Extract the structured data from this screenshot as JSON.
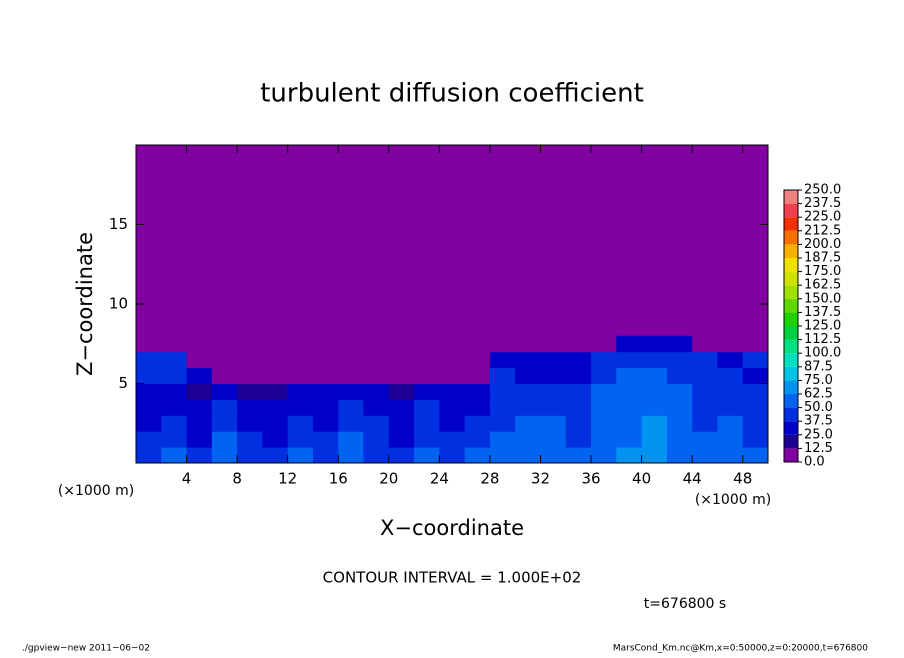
{
  "chart_data": {
    "type": "contour",
    "title": "turbulent diffusion coefficient",
    "xlabel": "X−coordinate",
    "ylabel": "Z−coordinate",
    "xunit": "(×1000 m)",
    "yunit": "(×1000 m)",
    "annotation": "CONTOUR INTERVAL = 1.000E+02",
    "time_label": "t=676800 s",
    "footer_left": "./gpview−new  2011−06−02",
    "footer_right": "MarsCond_Km.nc@Km,x=0:50000,z=0:20000,t=676800",
    "xlim": [
      0,
      50
    ],
    "ylim": [
      0,
      20
    ],
    "xticks": [
      4,
      8,
      12,
      16,
      20,
      24,
      28,
      32,
      36,
      40,
      44,
      48
    ],
    "yticks": [
      5,
      10,
      15
    ],
    "x": [
      1,
      3,
      5,
      7,
      9,
      11,
      13,
      15,
      17,
      19,
      21,
      23,
      25,
      27,
      29,
      31,
      33,
      35,
      37,
      39,
      41,
      43,
      45,
      47,
      49
    ],
    "y": [
      0.5,
      1.5,
      2.5,
      3.5,
      4.5,
      5.5,
      6.5,
      7.5
    ],
    "z": [
      [
        45,
        50,
        40,
        55,
        45,
        38,
        50,
        42,
        55,
        48,
        40,
        52,
        45,
        50,
        55,
        60,
        58,
        52,
        62,
        65,
        70,
        60,
        55,
        58,
        50
      ],
      [
        40,
        45,
        35,
        50,
        40,
        30,
        45,
        38,
        50,
        42,
        35,
        48,
        40,
        45,
        50,
        55,
        55,
        48,
        60,
        62,
        68,
        58,
        50,
        55,
        45
      ],
      [
        35,
        40,
        30,
        45,
        35,
        28,
        40,
        32,
        45,
        38,
        30,
        42,
        35,
        40,
        45,
        50,
        50,
        45,
        58,
        60,
        65,
        55,
        48,
        50,
        42
      ],
      [
        30,
        35,
        25,
        40,
        30,
        25,
        35,
        30,
        40,
        35,
        28,
        38,
        30,
        35,
        40,
        45,
        45,
        40,
        55,
        58,
        60,
        52,
        45,
        48,
        40
      ],
      [
        30,
        32,
        22,
        35,
        20,
        18,
        28,
        25,
        30,
        28,
        22,
        30,
        25,
        30,
        45,
        40,
        40,
        38,
        50,
        55,
        58,
        50,
        42,
        45,
        38
      ],
      [
        40,
        38,
        30,
        10,
        0,
        0,
        5,
        0,
        8,
        0,
        0,
        0,
        0,
        0,
        40,
        35,
        35,
        35,
        45,
        50,
        55,
        45,
        40,
        40,
        35
      ],
      [
        45,
        45,
        0,
        0,
        0,
        0,
        0,
        0,
        0,
        0,
        0,
        0,
        0,
        0,
        30,
        30,
        30,
        30,
        40,
        45,
        45,
        40,
        40,
        35,
        40
      ],
      [
        0,
        0,
        0,
        0,
        0,
        0,
        0,
        0,
        0,
        0,
        0,
        0,
        0,
        0,
        0,
        0,
        0,
        0,
        0,
        25,
        35,
        30,
        0,
        0,
        0
      ]
    ],
    "levels": [
      {
        "value": 0,
        "label": "0.0"
      },
      {
        "value": 12.5,
        "label": "12.5"
      },
      {
        "value": 25,
        "label": "25.0"
      },
      {
        "value": 37.5,
        "label": "37.5"
      },
      {
        "value": 50,
        "label": "50.0"
      },
      {
        "value": 62.5,
        "label": "62.5"
      },
      {
        "value": 75,
        "label": "75.0"
      },
      {
        "value": 87.5,
        "label": "87.5"
      },
      {
        "value": 100,
        "label": "100.0"
      },
      {
        "value": 112.5,
        "label": "112.5"
      },
      {
        "value": 125,
        "label": "125.0"
      },
      {
        "value": 137.5,
        "label": "137.5"
      },
      {
        "value": 150,
        "label": "150.0"
      },
      {
        "value": 162.5,
        "label": "162.5"
      },
      {
        "value": 175,
        "label": "175.0"
      },
      {
        "value": 187.5,
        "label": "187.5"
      },
      {
        "value": 200,
        "label": "200.0"
      },
      {
        "value": 212.5,
        "label": "212.5"
      },
      {
        "value": 225,
        "label": "225.0"
      },
      {
        "value": 237.5,
        "label": "237.5"
      },
      {
        "value": 250,
        "label": "250.0"
      }
    ],
    "colors": [
      "#8000a0",
      "#1c0096",
      "#0000c8",
      "#0030e0",
      "#0064f0",
      "#0094f0",
      "#00c4e4",
      "#00e0c0",
      "#00e080",
      "#00d040",
      "#20d000",
      "#60d800",
      "#a0e000",
      "#d0e000",
      "#f0e000",
      "#f8b000",
      "#f87000",
      "#f03000",
      "#f04050",
      "#f08080"
    ]
  }
}
